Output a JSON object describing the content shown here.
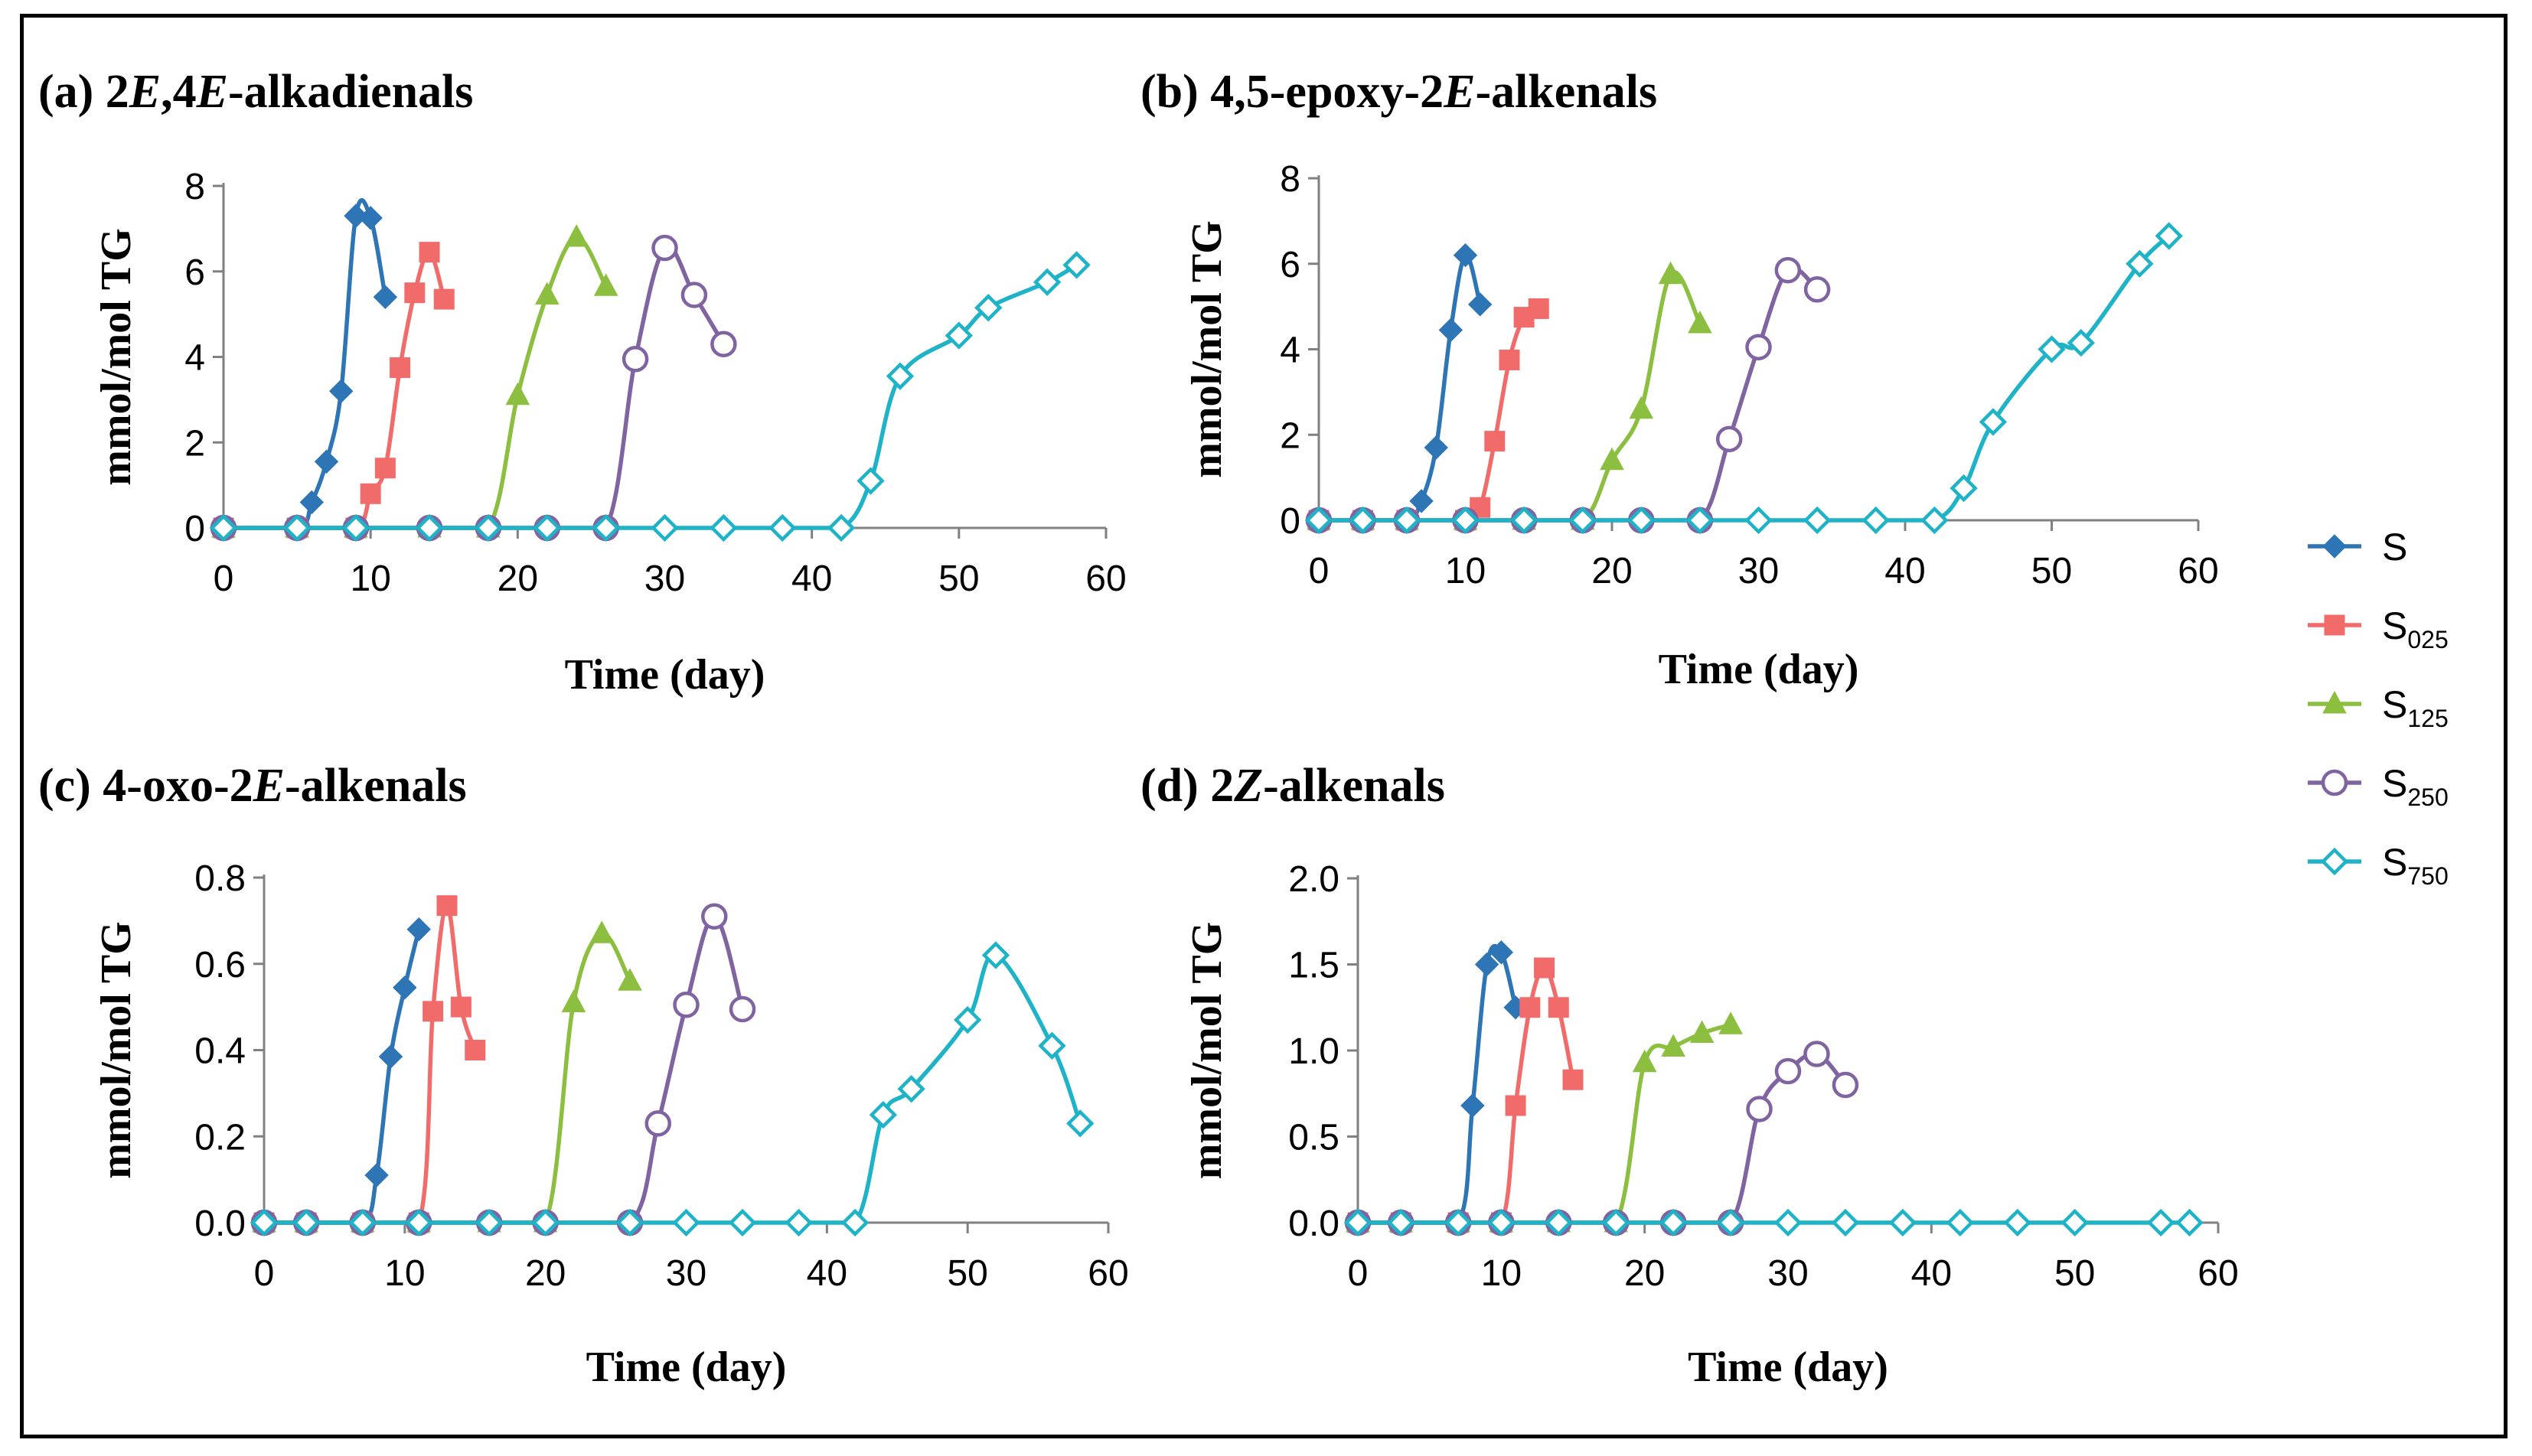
{
  "colors": {
    "S": "#2E75B6",
    "S025": "#F26B6B",
    "S125": "#8CBF3F",
    "S250": "#8064A2",
    "S750": "#1FB3C8"
  },
  "legend": [
    {
      "key": "S",
      "base": "S",
      "sub": "",
      "marker": "diamond"
    },
    {
      "key": "S025",
      "base": "S",
      "sub": "025",
      "marker": "square"
    },
    {
      "key": "S125",
      "base": "S",
      "sub": "125",
      "marker": "triangle"
    },
    {
      "key": "S250",
      "base": "S",
      "sub": "250",
      "marker": "circle-open"
    },
    {
      "key": "S750",
      "base": "S",
      "sub": "750",
      "marker": "diamond-open"
    }
  ],
  "chart_data": [
    {
      "type": "line",
      "title": "(a) 2E,4E-alkadienals",
      "title_parts": [
        {
          "text": "(a) 2",
          "italic": false
        },
        {
          "text": "E",
          "italic": true
        },
        {
          "text": ",4",
          "italic": false
        },
        {
          "text": "E",
          "italic": true
        },
        {
          "text": "-alkadienals",
          "italic": false
        }
      ],
      "xlabel": "Time (day)",
      "ylabel": "mmol/mol TG",
      "xlim": [
        0,
        60
      ],
      "ylim": [
        0,
        8
      ],
      "xticks": [
        0,
        10,
        20,
        30,
        40,
        50,
        60
      ],
      "yticks": [
        0,
        2,
        4,
        6,
        8
      ],
      "ytick_labels": [
        "0",
        "2",
        "4",
        "6",
        "8"
      ],
      "series": [
        {
          "name": "S",
          "x": [
            0,
            5,
            6,
            7,
            8,
            9,
            10,
            11
          ],
          "y": [
            0,
            0,
            0.6,
            1.55,
            3.2,
            7.3,
            7.25,
            5.4
          ]
        },
        {
          "name": "S025",
          "x": [
            0,
            5,
            9,
            10,
            11,
            12,
            13,
            14,
            15
          ],
          "y": [
            0,
            0,
            0,
            0.8,
            1.4,
            3.75,
            5.5,
            6.45,
            5.35
          ]
        },
        {
          "name": "S125",
          "x": [
            0,
            5,
            9,
            14,
            18,
            20,
            22,
            24,
            26
          ],
          "y": [
            0,
            0,
            0,
            0,
            0,
            3.1,
            5.45,
            6.8,
            5.65
          ]
        },
        {
          "name": "S250",
          "x": [
            0,
            5,
            9,
            14,
            18,
            22,
            26,
            28,
            30,
            32,
            34
          ],
          "y": [
            0,
            0,
            0,
            0,
            0,
            0,
            0,
            3.95,
            6.55,
            5.45,
            4.3
          ]
        },
        {
          "name": "S750",
          "x": [
            0,
            5,
            9,
            14,
            18,
            22,
            26,
            30,
            34,
            38,
            42,
            44,
            46,
            50,
            52,
            56,
            58
          ],
          "y": [
            0,
            0,
            0,
            0,
            0,
            0,
            0,
            0,
            0,
            0,
            0,
            1.1,
            3.55,
            4.5,
            5.15,
            5.75,
            6.15
          ]
        }
      ]
    },
    {
      "type": "line",
      "title": "(b) 4,5-epoxy-2E-alkenals",
      "title_parts": [
        {
          "text": "(b) 4,5-epoxy-2",
          "italic": false
        },
        {
          "text": "E",
          "italic": true
        },
        {
          "text": "-alkenals",
          "italic": false
        }
      ],
      "xlabel": "Time (day)",
      "ylabel": "mmol/mol TG",
      "xlim": [
        0,
        60
      ],
      "ylim": [
        0,
        8
      ],
      "xticks": [
        0,
        10,
        20,
        30,
        40,
        50,
        60
      ],
      "yticks": [
        0,
        2,
        4,
        6,
        8
      ],
      "ytick_labels": [
        "0",
        "2",
        "4",
        "6",
        "8"
      ],
      "series": [
        {
          "name": "S",
          "x": [
            0,
            3,
            6,
            7,
            8,
            9,
            10,
            11
          ],
          "y": [
            0,
            0,
            0,
            0.45,
            1.7,
            4.45,
            6.2,
            5.05
          ]
        },
        {
          "name": "S025",
          "x": [
            0,
            3,
            6,
            10,
            11,
            12,
            13,
            14,
            15
          ],
          "y": [
            0,
            0,
            0,
            0,
            0.3,
            1.85,
            3.75,
            4.75,
            4.95
          ]
        },
        {
          "name": "S125",
          "x": [
            0,
            3,
            6,
            10,
            14,
            18,
            20,
            22,
            24,
            26
          ],
          "y": [
            0,
            0,
            0,
            0,
            0,
            0,
            1.4,
            2.6,
            5.75,
            4.6
          ]
        },
        {
          "name": "S250",
          "x": [
            0,
            3,
            6,
            10,
            14,
            18,
            22,
            26,
            28,
            30,
            32,
            34
          ],
          "y": [
            0,
            0,
            0,
            0,
            0,
            0,
            0,
            0,
            1.9,
            4.05,
            5.85,
            5.4
          ]
        },
        {
          "name": "S750",
          "x": [
            0,
            3,
            6,
            10,
            14,
            18,
            22,
            26,
            30,
            34,
            38,
            42,
            44,
            46,
            50,
            52,
            56,
            58
          ],
          "y": [
            0,
            0,
            0,
            0,
            0,
            0,
            0,
            0,
            0,
            0,
            0,
            0,
            0.75,
            2.3,
            4.0,
            4.15,
            6.0,
            6.65
          ]
        }
      ]
    },
    {
      "type": "line",
      "title": "(c) 4-oxo-2E-alkenals",
      "title_parts": [
        {
          "text": "(c) 4-oxo-2",
          "italic": false
        },
        {
          "text": "E",
          "italic": true
        },
        {
          "text": "-alkenals",
          "italic": false
        }
      ],
      "xlabel": "Time (day)",
      "ylabel": "mmol/mol TG",
      "xlim": [
        0,
        60
      ],
      "ylim": [
        0,
        0.8
      ],
      "xticks": [
        0,
        10,
        20,
        30,
        40,
        50,
        60
      ],
      "yticks": [
        0,
        0.2,
        0.4,
        0.6,
        0.8
      ],
      "ytick_labels": [
        "0.0",
        "0.2",
        "0.4",
        "0.6",
        "0.8"
      ],
      "series": [
        {
          "name": "S",
          "x": [
            0,
            3,
            7,
            8,
            9,
            10,
            11
          ],
          "y": [
            0,
            0,
            0,
            0.11,
            0.385,
            0.545,
            0.68
          ]
        },
        {
          "name": "S025",
          "x": [
            0,
            3,
            7,
            11,
            12,
            13,
            14,
            15
          ],
          "y": [
            0,
            0,
            0,
            0,
            0.49,
            0.735,
            0.5,
            0.4
          ]
        },
        {
          "name": "S125",
          "x": [
            0,
            3,
            7,
            11,
            16,
            20,
            22,
            24,
            26
          ],
          "y": [
            0,
            0,
            0,
            0,
            0,
            0,
            0.51,
            0.67,
            0.56
          ]
        },
        {
          "name": "S250",
          "x": [
            0,
            3,
            7,
            11,
            16,
            20,
            26,
            28,
            30,
            32,
            34
          ],
          "y": [
            0,
            0,
            0,
            0,
            0,
            0,
            0,
            0.23,
            0.505,
            0.71,
            0.495
          ]
        },
        {
          "name": "S750",
          "x": [
            0,
            3,
            7,
            11,
            16,
            20,
            26,
            30,
            34,
            38,
            42,
            44,
            46,
            50,
            52,
            56,
            58
          ],
          "y": [
            0,
            0,
            0,
            0,
            0,
            0,
            0,
            0,
            0,
            0,
            0,
            0.25,
            0.31,
            0.47,
            0.62,
            0.41,
            0.23
          ]
        }
      ]
    },
    {
      "type": "line",
      "title": "(d) 2Z-alkenals",
      "title_parts": [
        {
          "text": "(d) 2",
          "italic": false
        },
        {
          "text": "Z",
          "italic": true
        },
        {
          "text": "-alkenals",
          "italic": false
        }
      ],
      "xlabel": "Time (day)",
      "ylabel": "mmol/mol TG",
      "xlim": [
        0,
        60
      ],
      "ylim": [
        0,
        2.0
      ],
      "xticks": [
        0,
        10,
        20,
        30,
        40,
        50,
        60
      ],
      "yticks": [
        0,
        0.5,
        1.0,
        1.5,
        2.0
      ],
      "ytick_labels": [
        "0.0",
        "0.5",
        "1.0",
        "1.5",
        "2.0"
      ],
      "series": [
        {
          "name": "S",
          "x": [
            0,
            3,
            7,
            8,
            9,
            10,
            11
          ],
          "y": [
            0,
            0,
            0,
            0.68,
            1.5,
            1.57,
            1.25
          ]
        },
        {
          "name": "S025",
          "x": [
            0,
            3,
            7,
            10,
            11,
            12,
            13,
            14,
            15
          ],
          "y": [
            0,
            0,
            0,
            0,
            0.68,
            1.25,
            1.48,
            1.25,
            0.83
          ]
        },
        {
          "name": "S125",
          "x": [
            0,
            3,
            7,
            10,
            14,
            18,
            20,
            22,
            24,
            26
          ],
          "y": [
            0,
            0,
            0,
            0,
            0,
            0,
            0.93,
            1.02,
            1.1,
            1.15
          ]
        },
        {
          "name": "S250",
          "x": [
            0,
            3,
            7,
            10,
            14,
            18,
            22,
            26,
            28,
            30,
            32,
            34
          ],
          "y": [
            0,
            0,
            0,
            0,
            0,
            0,
            0,
            0,
            0.66,
            0.88,
            0.98,
            0.8
          ]
        },
        {
          "name": "S750",
          "x": [
            0,
            3,
            7,
            10,
            14,
            18,
            22,
            26,
            30,
            34,
            38,
            42,
            46,
            50,
            56,
            58
          ],
          "y": [
            0,
            0,
            0,
            0,
            0,
            0,
            0,
            0,
            0,
            0,
            0,
            0,
            0,
            0,
            0,
            0
          ]
        }
      ]
    }
  ]
}
